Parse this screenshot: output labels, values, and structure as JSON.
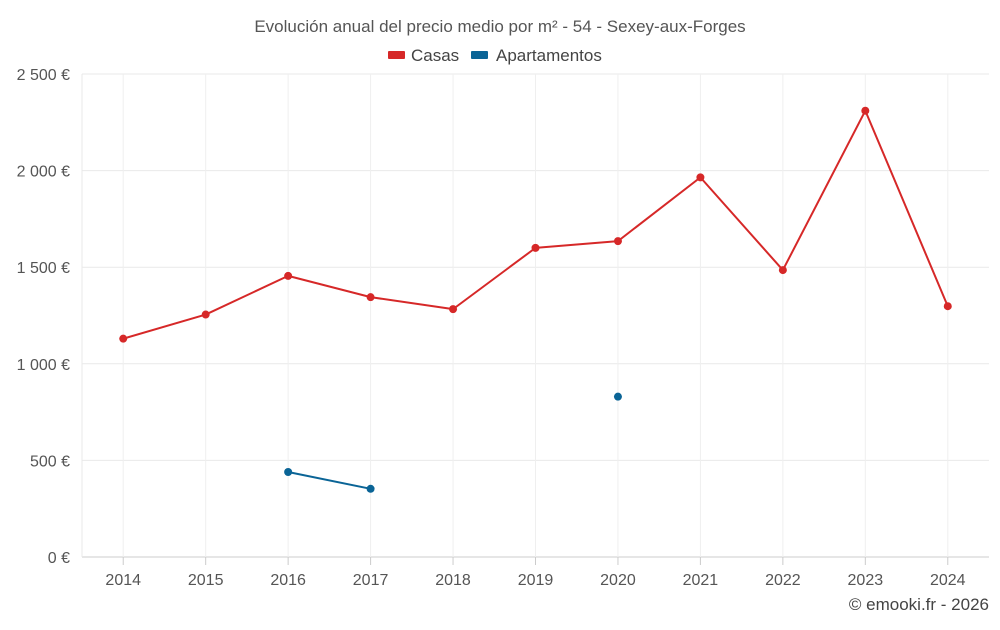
{
  "chart_data": {
    "type": "line",
    "title": "Evolución anual del precio medio por m² - 54 - Sexey-aux-Forges",
    "categories": [
      "2014",
      "2015",
      "2016",
      "2017",
      "2018",
      "2019",
      "2020",
      "2021",
      "2022",
      "2023",
      "2024"
    ],
    "ylim": [
      0,
      2500
    ],
    "y_ticks": [
      0,
      500,
      1000,
      1500,
      2000,
      2500
    ],
    "y_tick_labels": [
      "0 €",
      "500 €",
      "1 000 €",
      "1 500 €",
      "2 000 €",
      "2 500 €"
    ],
    "xlabel": "",
    "ylabel": "",
    "grid": true,
    "legend_position": "top-center",
    "series": [
      {
        "name": "Casas",
        "color": "#d62828",
        "values": [
          1130,
          1255,
          1455,
          1345,
          1283,
          1600,
          1635,
          1965,
          1485,
          2310,
          1298
        ]
      },
      {
        "name": "Apartamentos",
        "color": "#0a6496",
        "values": [
          null,
          null,
          440,
          353,
          null,
          null,
          830,
          null,
          null,
          null,
          null
        ]
      }
    ]
  },
  "credit": "© emooki.fr - 2026"
}
